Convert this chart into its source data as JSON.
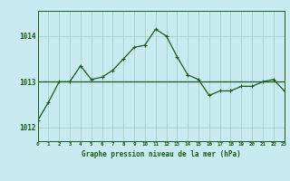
{
  "title": "Graphe pression niveau de la mer (hPa)",
  "background_color": "#c8eaf0",
  "grid_color": "#99ccbb",
  "line_color": "#1a5c1a",
  "marker_color": "#1a5c1a",
  "x_values": [
    0,
    1,
    2,
    3,
    4,
    5,
    6,
    7,
    8,
    9,
    10,
    11,
    12,
    13,
    14,
    15,
    16,
    17,
    18,
    19,
    20,
    21,
    22,
    23
  ],
  "series1": [
    1012.15,
    1012.55,
    1013.0,
    1013.0,
    1013.35,
    1013.05,
    1013.1,
    1013.25,
    1013.5,
    1013.75,
    1013.8,
    1014.15,
    1014.0,
    1013.55,
    1013.15,
    1013.05,
    1012.7,
    1012.8,
    1012.8,
    1012.9,
    1012.9,
    1013.0,
    1013.05,
    1012.8
  ],
  "series2": [
    1013.0,
    1013.0,
    1013.0,
    1013.0,
    1013.0,
    1013.0,
    1013.0,
    1013.0,
    1013.0,
    1013.0,
    1013.0,
    1013.0,
    1013.0,
    1013.0,
    1013.0,
    1013.0,
    1013.0,
    1013.0,
    1013.0,
    1013.0,
    1013.0,
    1013.0,
    1013.0,
    1013.0
  ],
  "yticks": [
    1012,
    1013,
    1014
  ],
  "ylim": [
    1011.7,
    1014.55
  ],
  "xlim": [
    0,
    23
  ]
}
